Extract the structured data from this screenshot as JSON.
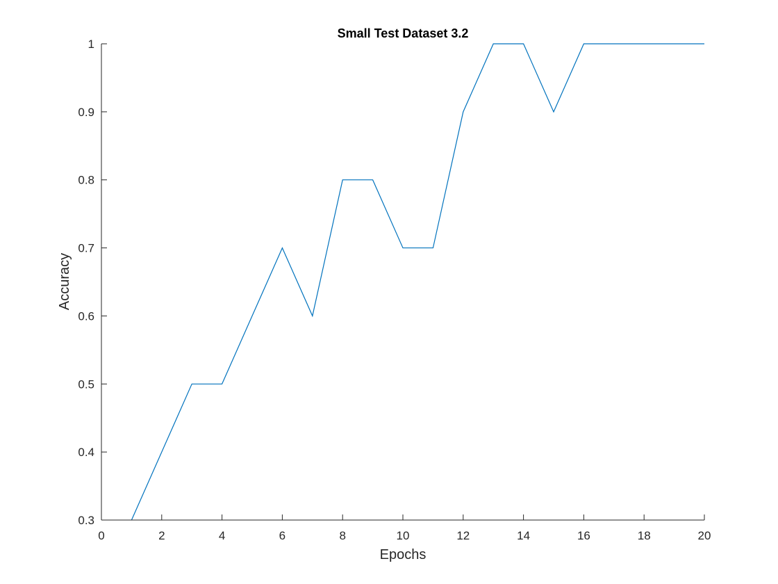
{
  "chart_data": {
    "type": "line",
    "title": "Small Test Dataset 3.2",
    "xlabel": "Epochs",
    "ylabel": "Accuracy",
    "xlim": [
      0,
      20
    ],
    "ylim": [
      0.3,
      1
    ],
    "xticks": [
      0,
      2,
      4,
      6,
      8,
      10,
      12,
      14,
      16,
      18,
      20
    ],
    "xtick_labels": [
      "0",
      "2",
      "4",
      "6",
      "8",
      "10",
      "12",
      "14",
      "16",
      "18",
      "20"
    ],
    "yticks": [
      0.3,
      0.4,
      0.5,
      0.6,
      0.7,
      0.8,
      0.9,
      1
    ],
    "ytick_labels": [
      "0.3",
      "0.4",
      "0.5",
      "0.6",
      "0.7",
      "0.8",
      "0.9",
      "1"
    ],
    "grid": false,
    "legend": "none",
    "series": [
      {
        "color": "#0072bd",
        "x": [
          1,
          2,
          3,
          4,
          5,
          6,
          7,
          8,
          9,
          10,
          11,
          12,
          13,
          14,
          15,
          16,
          17,
          18,
          19,
          20
        ],
        "y": [
          0.3,
          0.4,
          0.5,
          0.5,
          0.6,
          0.7,
          0.6,
          0.8,
          0.8,
          0.7,
          0.7,
          0.9,
          1.0,
          1.0,
          0.9,
          1.0,
          1.0,
          1.0,
          1.0,
          1.0
        ]
      }
    ]
  }
}
